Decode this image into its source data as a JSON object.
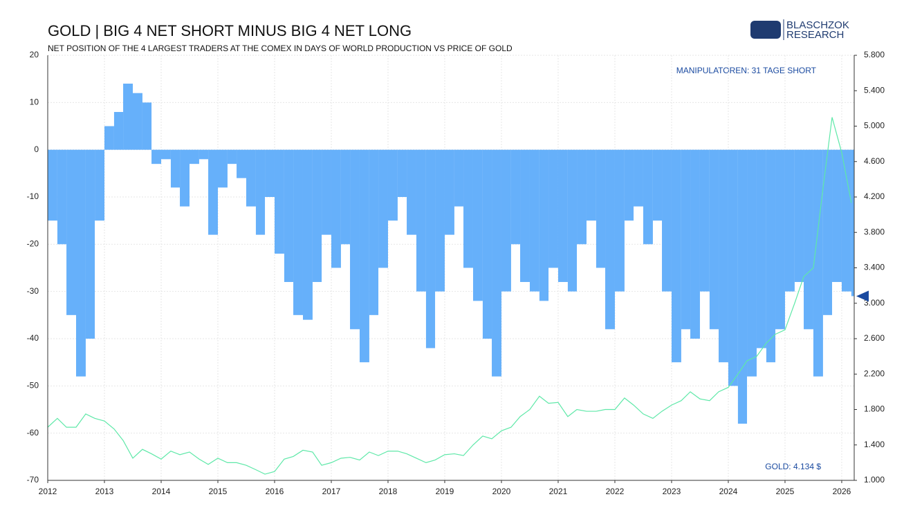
{
  "chart_data": {
    "type": "bar-line",
    "title": "GOLD | BIG 4 NET SHORT MINUS BIG 4 NET LONG",
    "subtitle": "NET POSITION OF THE 4 LARGEST TRADERS AT THE COMEX IN DAYS OF WORLD PRODUCTION VS PRICE OF GOLD",
    "logo": [
      "BLASCHZOK",
      "RESEARCH"
    ],
    "annotations": [
      "MANIPULATOREN: 31 TAGE SHORT",
      "GOLD: 4.134 $"
    ],
    "x": [
      2012,
      2012.17,
      2012.33,
      2012.5,
      2012.67,
      2012.83,
      2013,
      2013.17,
      2013.33,
      2013.5,
      2013.67,
      2013.83,
      2014,
      2014.17,
      2014.33,
      2014.5,
      2014.67,
      2014.83,
      2015,
      2015.17,
      2015.33,
      2015.5,
      2015.67,
      2015.83,
      2016,
      2016.17,
      2016.33,
      2016.5,
      2016.67,
      2016.83,
      2017,
      2017.17,
      2017.33,
      2017.5,
      2017.67,
      2017.83,
      2018,
      2018.17,
      2018.33,
      2018.5,
      2018.67,
      2018.83,
      2019,
      2019.17,
      2019.33,
      2019.5,
      2019.67,
      2019.83,
      2020,
      2020.17,
      2020.33,
      2020.5,
      2020.67,
      2020.83,
      2021,
      2021.17,
      2021.33,
      2021.5,
      2021.67,
      2021.83,
      2022,
      2022.17,
      2022.33,
      2022.5,
      2022.67,
      2022.83,
      2023,
      2023.17,
      2023.33,
      2023.5,
      2023.67,
      2023.83,
      2024,
      2024.17,
      2024.33,
      2024.5,
      2024.67,
      2024.83,
      2025,
      2025.17,
      2025.33,
      2025.5,
      2025.67,
      2025.83,
      2026,
      2026.17
    ],
    "series": [
      {
        "name": "Big 4 net position",
        "color": "#66b0fa",
        "values": [
          -15,
          -20,
          -35,
          -48,
          -40,
          -15,
          5,
          8,
          14,
          12,
          10,
          -3,
          -2,
          -8,
          -12,
          -3,
          -2,
          -18,
          -8,
          -3,
          -6,
          -12,
          -18,
          -10,
          -22,
          -28,
          -35,
          -36,
          -28,
          -18,
          -25,
          -20,
          -38,
          -45,
          -35,
          -25,
          -15,
          -10,
          -18,
          -30,
          -42,
          -30,
          -18,
          -12,
          -25,
          -32,
          -40,
          -48,
          -30,
          -20,
          -28,
          -30,
          -32,
          -25,
          -28,
          -30,
          -20,
          -15,
          -25,
          -38,
          -30,
          -15,
          -12,
          -20,
          -15,
          -30,
          -45,
          -38,
          -40,
          -30,
          -38,
          -45,
          -50,
          -58,
          -48,
          -42,
          -45,
          -38,
          -30,
          -28,
          -38,
          -48,
          -35,
          -28,
          -30,
          -31
        ]
      },
      {
        "name": "Gold",
        "color": "#5ee8a8",
        "axis": "y2",
        "values": [
          1600,
          1700,
          1600,
          1600,
          1750,
          1700,
          1670,
          1580,
          1450,
          1250,
          1350,
          1300,
          1240,
          1330,
          1290,
          1320,
          1240,
          1180,
          1250,
          1200,
          1200,
          1170,
          1120,
          1070,
          1100,
          1240,
          1270,
          1340,
          1320,
          1170,
          1200,
          1250,
          1260,
          1230,
          1320,
          1280,
          1330,
          1330,
          1300,
          1250,
          1200,
          1230,
          1290,
          1300,
          1280,
          1400,
          1500,
          1470,
          1560,
          1600,
          1720,
          1800,
          1950,
          1870,
          1880,
          1720,
          1800,
          1780,
          1780,
          1800,
          1800,
          1930,
          1850,
          1750,
          1700,
          1780,
          1850,
          1900,
          2000,
          1920,
          1900,
          2000,
          2050,
          2200,
          2350,
          2400,
          2550,
          2650,
          2700,
          3000,
          3300,
          3400,
          4300,
          5100,
          4700,
          4134
        ]
      }
    ],
    "xlim": [
      2012,
      2026.22
    ],
    "xticks": [
      2012,
      2013,
      2014,
      2015,
      2016,
      2017,
      2018,
      2019,
      2020,
      2021,
      2022,
      2023,
      2024,
      2025,
      2026
    ],
    "ylim": [
      -70,
      20
    ],
    "yticks": [
      20,
      10,
      0,
      -10,
      -20,
      -30,
      -40,
      -50,
      -60,
      -70
    ],
    "y2lim": [
      1000,
      5800
    ],
    "y2ticks": [
      {
        "value": 5800,
        "label": "5.800"
      },
      {
        "value": 5400,
        "label": "5.400"
      },
      {
        "value": 5000,
        "label": "5.000"
      },
      {
        "value": 4600,
        "label": "4.600"
      },
      {
        "value": 4200,
        "label": "4.200"
      },
      {
        "value": 3800,
        "label": "3.800"
      },
      {
        "value": 3400,
        "label": "3.400"
      },
      {
        "value": 3000,
        "label": "3.000"
      },
      {
        "value": 2600,
        "label": "2.600"
      },
      {
        "value": 2200,
        "label": "2.200"
      },
      {
        "value": 1800,
        "label": "1.800"
      },
      {
        "value": 1400,
        "label": "1.400"
      },
      {
        "value": 1000,
        "label": "1.000"
      }
    ],
    "grid": true
  }
}
